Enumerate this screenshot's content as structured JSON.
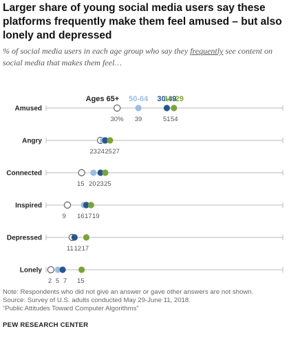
{
  "title": "Larger share of young social media users say these platforms frequently make them feel amused – but also lonely and depressed",
  "subtitle": {
    "before": "% of social media users in each age group who say they ",
    "underlined": "frequently",
    "after": " see content on social media that makes them feel…"
  },
  "chart_data": {
    "type": "dot",
    "categories": [
      "Amused",
      "Angry",
      "Connected",
      "Inspired",
      "Depressed",
      "Lonely"
    ],
    "series": [
      {
        "name": "Ages 65+",
        "color": "#ffffff",
        "stroke": "#555555",
        "values": [
          30,
          23,
          15,
          9,
          11,
          2
        ],
        "value_labels": [
          "30%",
          "23",
          "15",
          "9",
          "11",
          "2"
        ]
      },
      {
        "name": "50-64",
        "color": "#9cbde0",
        "values": [
          39,
          24,
          20,
          16,
          12,
          5
        ],
        "value_labels": [
          "39",
          "24",
          "20",
          "16",
          "12",
          "5"
        ]
      },
      {
        "name": "30-49",
        "color": "#27558f",
        "values": [
          51,
          25,
          23,
          17,
          12,
          7
        ],
        "value_labels": [
          "51",
          "25",
          "23",
          "17",
          "",
          "7"
        ]
      },
      {
        "name": "18-29",
        "color": "#7ba33b",
        "values": [
          54,
          27,
          25,
          19,
          17,
          15
        ],
        "value_labels": [
          "54",
          "27",
          "25",
          "19",
          "17",
          "15"
        ]
      }
    ],
    "xlim": [
      0,
      100
    ],
    "grid": false
  },
  "footer": {
    "note": "Note: Respondents who did not give an answer or gave other answers are not shown.",
    "source": "Source: Survey of U.S. adults conducted May 29-June 11, 2018.",
    "report": "“Public Attitudes Toward Computer Algorithms”",
    "org": "PEW RESEARCH CENTER"
  }
}
